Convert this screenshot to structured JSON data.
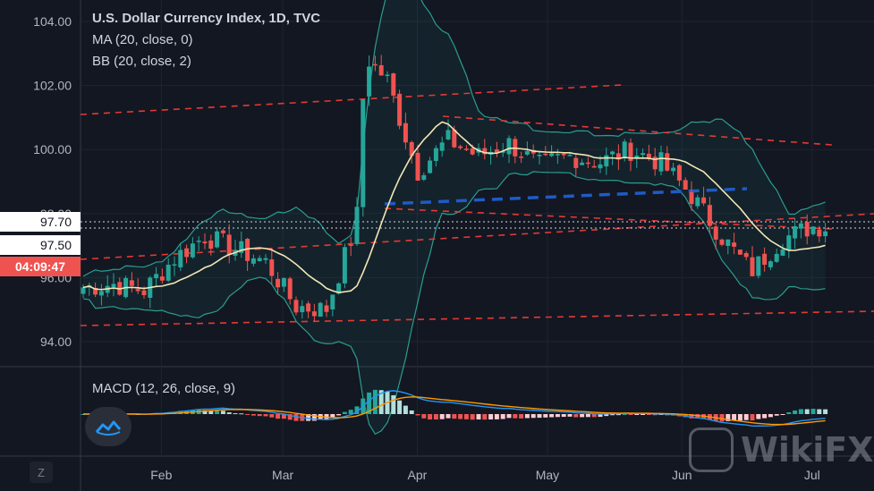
{
  "header": {
    "title": "U.S. Dollar Currency Index, 1D, TVC",
    "ma_label": "MA (20, close, 0)",
    "bb_label": "BB (20, close, 2)",
    "macd_label": "MACD (12, 26, close, 9)"
  },
  "price_tags": {
    "upper": "97.70",
    "lower": "97.50",
    "countdown": "04:09:47"
  },
  "controls": {
    "zoom_label": "Z"
  },
  "watermark": {
    "text": "WikiFX"
  },
  "colors": {
    "background": "#131722",
    "up": "#26a69a",
    "down": "#ef5350",
    "ma": "#f3e6b5",
    "bb": "#2a9d8f",
    "trendline": "#e53935",
    "blue_trend": "#1e5bc6",
    "macd_line": "#2196f3",
    "signal_line": "#ff9800"
  },
  "chart_data": {
    "type": "candlestick",
    "title": "U.S. Dollar Currency Index, 1D, TVC",
    "y_ticks": [
      "104.00",
      "102.00",
      "100.00",
      "98.00",
      "97.70",
      "97.50",
      "96.00",
      "94.00"
    ],
    "ylim": [
      93.6,
      104.4
    ],
    "x_ticks": [
      "Feb",
      "Mar",
      "Apr",
      "May",
      "Jun",
      "Jul"
    ],
    "approx_close_series": [
      {
        "date": "2019-01-14",
        "close": 95.7
      },
      {
        "date": "2019-01-21",
        "close": 95.8
      },
      {
        "date": "2019-01-28",
        "close": 95.6
      },
      {
        "date": "2019-02-04",
        "close": 96.6
      },
      {
        "date": "2019-02-11",
        "close": 97.3
      },
      {
        "date": "2019-02-18",
        "close": 96.9
      },
      {
        "date": "2019-02-25",
        "close": 96.5
      },
      {
        "date": "2019-03-04",
        "close": 95.1
      },
      {
        "date": "2019-03-11",
        "close": 95.0
      },
      {
        "date": "2019-03-18",
        "close": 97.7
      },
      {
        "date": "2019-03-20",
        "close": 102.9
      },
      {
        "date": "2019-03-25",
        "close": 102.2
      },
      {
        "date": "2019-04-01",
        "close": 99.3
      },
      {
        "date": "2019-04-08",
        "close": 100.3
      },
      {
        "date": "2019-04-15",
        "close": 99.8
      },
      {
        "date": "2019-04-22",
        "close": 100.2
      },
      {
        "date": "2019-04-29",
        "close": 99.5
      },
      {
        "date": "2019-05-06",
        "close": 99.8
      },
      {
        "date": "2019-05-13",
        "close": 99.6
      },
      {
        "date": "2019-05-20",
        "close": 100.0
      },
      {
        "date": "2019-05-27",
        "close": 99.6
      },
      {
        "date": "2019-06-03",
        "close": 98.6
      },
      {
        "date": "2019-06-10",
        "close": 97.3
      },
      {
        "date": "2019-06-17",
        "close": 96.2
      },
      {
        "date": "2019-06-24",
        "close": 97.2
      },
      {
        "date": "2019-07-01",
        "close": 97.6
      }
    ],
    "overlays": [
      "MA (20, close, 0)",
      "BB (20, close, 2)"
    ],
    "indicator": "MACD (12, 26, close, 9)",
    "grid": true
  }
}
